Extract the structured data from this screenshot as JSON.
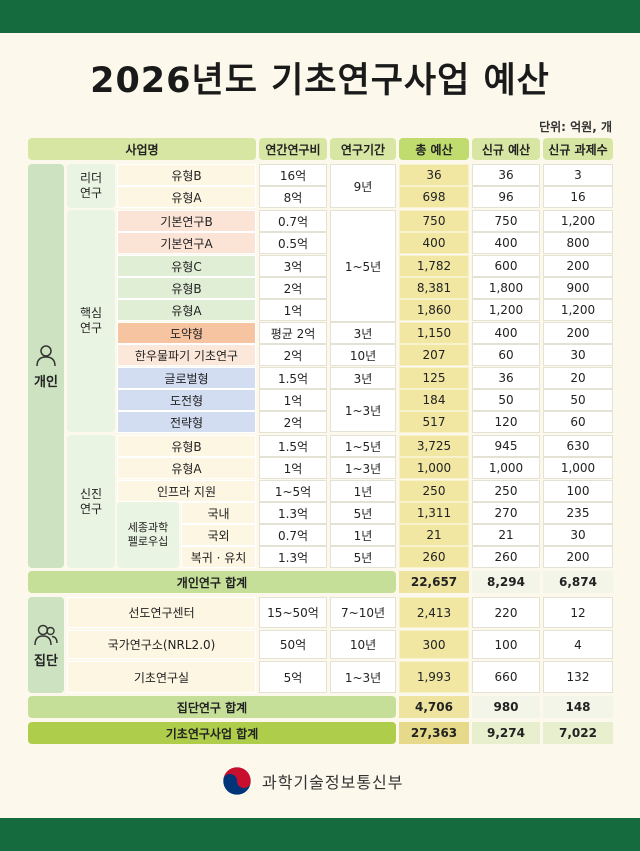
{
  "title": "2026년도 기초연구사업 예산",
  "unit": "단위: 억원, 개",
  "headers": {
    "name": "사업명",
    "annual": "연간연구비",
    "period": "연구기간",
    "total": "총 예산",
    "new_budget": "신규 예산",
    "new_count": "신규 과제수"
  },
  "groups": {
    "individual": "개인",
    "group": "집단",
    "leader": "리더\n연구",
    "core": "핵심\n연구",
    "newcomer": "신진\n연구",
    "fellowship": "세종과학\n펠로우십"
  },
  "rows": [
    {
      "name": "유형B",
      "annual": "16억",
      "total": "36",
      "new_budget": "36",
      "new_count": "3",
      "color": "#fdf6e3"
    },
    {
      "name": "유형A",
      "annual": "8억",
      "total": "698",
      "new_budget": "96",
      "new_count": "16",
      "color": "#fdf6e3"
    },
    {
      "name": "기본연구B",
      "annual": "0.7억",
      "total": "750",
      "new_budget": "750",
      "new_count": "1,200",
      "color": "#fbe3d6"
    },
    {
      "name": "기본연구A",
      "annual": "0.5억",
      "total": "400",
      "new_budget": "400",
      "new_count": "800",
      "color": "#fbe3d6"
    },
    {
      "name": "유형C",
      "annual": "3억",
      "total": "1,782",
      "new_budget": "600",
      "new_count": "200",
      "color": "#e0eed6"
    },
    {
      "name": "유형B",
      "annual": "2억",
      "total": "8,381",
      "new_budget": "1,800",
      "new_count": "900",
      "color": "#e0eed6"
    },
    {
      "name": "유형A",
      "annual": "1억",
      "total": "1,860",
      "new_budget": "1,200",
      "new_count": "1,200",
      "color": "#e0eed6"
    },
    {
      "name": "도약형",
      "annual": "평균 2억",
      "total": "1,150",
      "new_budget": "400",
      "new_count": "200",
      "color": "#f7c4a2"
    },
    {
      "name": "한우물파기 기초연구",
      "annual": "2억",
      "total": "207",
      "new_budget": "60",
      "new_count": "30",
      "color": "#fce8da"
    },
    {
      "name": "글로벌형",
      "annual": "1.5억",
      "total": "125",
      "new_budget": "36",
      "new_count": "20",
      "color": "#d3ddf1"
    },
    {
      "name": "도전형",
      "annual": "1억",
      "total": "184",
      "new_budget": "50",
      "new_count": "50",
      "color": "#d3ddf1"
    },
    {
      "name": "전략형",
      "annual": "2억",
      "total": "517",
      "new_budget": "120",
      "new_count": "60",
      "color": "#d3ddf1"
    },
    {
      "name": "유형B",
      "annual": "1.5억",
      "period": "1~5년",
      "total": "3,725",
      "new_budget": "945",
      "new_count": "630",
      "color": "#fdf6e3"
    },
    {
      "name": "유형A",
      "annual": "1억",
      "period": "1~3년",
      "total": "1,000",
      "new_budget": "1,000",
      "new_count": "1,000",
      "color": "#fdf6e3"
    },
    {
      "name": "인프라 지원",
      "annual": "1~5억",
      "period": "1년",
      "total": "250",
      "new_budget": "250",
      "new_count": "100",
      "color": "#fdf6e3"
    },
    {
      "name": "국내",
      "annual": "1.3억",
      "period": "5년",
      "total": "1,311",
      "new_budget": "270",
      "new_count": "235",
      "color": "#fdf6e3"
    },
    {
      "name": "국외",
      "annual": "0.7억",
      "period": "1년",
      "total": "21",
      "new_budget": "21",
      "new_count": "30",
      "color": "#fdf6e3"
    },
    {
      "name": "복귀 · 유치",
      "annual": "1.3억",
      "period": "5년",
      "total": "260",
      "new_budget": "260",
      "new_count": "200",
      "color": "#fdf6e3"
    }
  ],
  "merged_periods": {
    "leader": "9년",
    "core_basic": "1~5년",
    "leap": "3년",
    "onewell": "10년",
    "global": "3년",
    "challenge": "1~3년"
  },
  "individual_total": {
    "label": "개인연구 합계",
    "total": "22,657",
    "new_budget": "8,294",
    "new_count": "6,874"
  },
  "group_rows": [
    {
      "name": "선도연구센터",
      "annual": "15~50억",
      "period": "7~10년",
      "total": "2,413",
      "new_budget": "220",
      "new_count": "12"
    },
    {
      "name": "국가연구소(NRL2.0)",
      "annual": "50억",
      "period": "10년",
      "total": "300",
      "new_budget": "100",
      "new_count": "4"
    },
    {
      "name": "기초연구실",
      "annual": "5억",
      "period": "1~3년",
      "total": "1,993",
      "new_budget": "660",
      "new_count": "132"
    }
  ],
  "group_total": {
    "label": "집단연구 합계",
    "total": "4,706",
    "new_budget": "980",
    "new_count": "148"
  },
  "grand_total": {
    "label": "기초연구사업 합계",
    "total": "27,363",
    "new_budget": "9,274",
    "new_count": "7,022"
  },
  "ministry": "과학기술정보통신부",
  "colors": {
    "band": "#166b3e",
    "header": "#c0dc6e",
    "total_column": "#f1e7a3",
    "logo_red": "#c8102e",
    "logo_blue": "#003478"
  }
}
